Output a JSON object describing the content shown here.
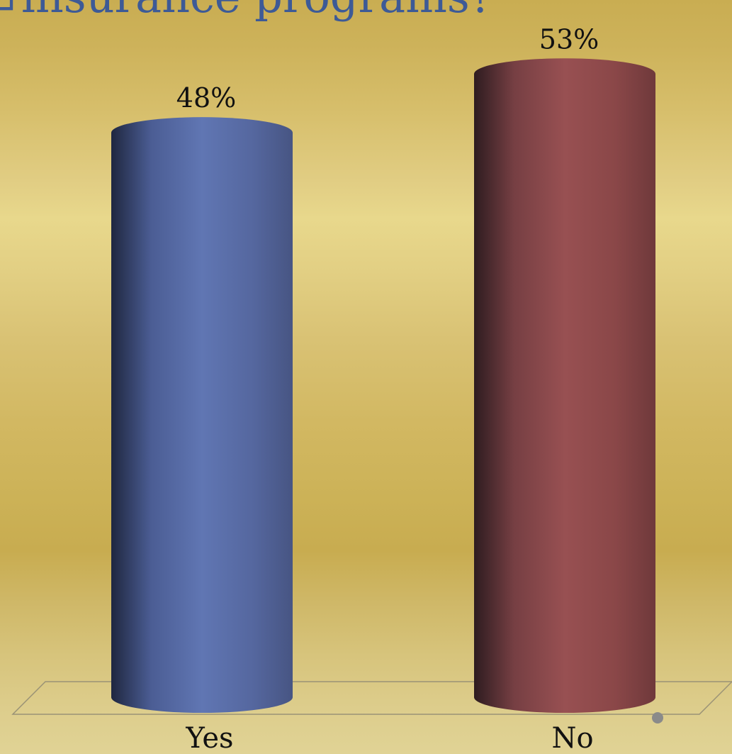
{
  "title_fragment": "insurance programs?",
  "chart_data": {
    "type": "bar",
    "style": "3d-cylinder",
    "categories": [
      "Yes",
      "No"
    ],
    "values": [
      48,
      53
    ],
    "value_labels": [
      "48%",
      "53%"
    ],
    "colors": [
      "#5b72b0",
      "#944e4e"
    ],
    "grid": false
  }
}
